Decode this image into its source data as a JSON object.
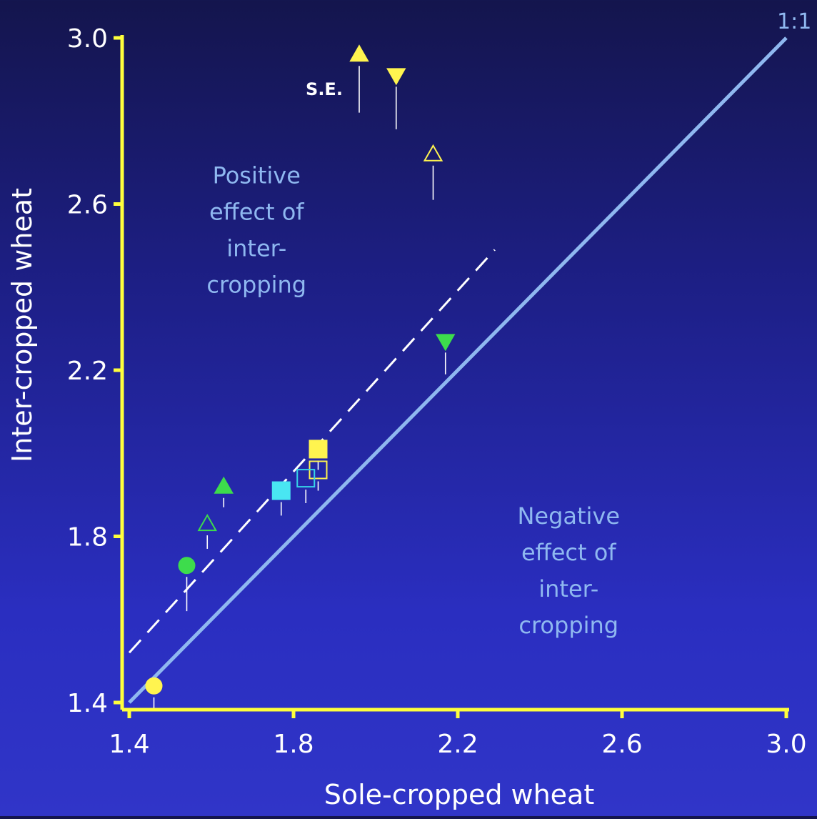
{
  "chart_data": {
    "type": "scatter",
    "xlabel": "Sole-cropped wheat",
    "ylabel": "Inter-cropped wheat",
    "xlim": [
      1.4,
      3.0
    ],
    "ylim": [
      1.4,
      3.0
    ],
    "xticks": [
      "1.4",
      "1.8",
      "2.2",
      "2.6",
      "3.0"
    ],
    "yticks": [
      "1.4",
      "1.8",
      "2.2",
      "2.6",
      "3.0"
    ],
    "reference_line": {
      "label": "1:1",
      "from": [
        1.4,
        1.4
      ],
      "to": [
        3.0,
        3.0
      ],
      "color": "#8fb8f0"
    },
    "fitted_line": {
      "style": "dashed",
      "from": [
        1.4,
        1.52
      ],
      "to": [
        2.29,
        2.49
      ],
      "color": "#ffffff"
    },
    "se_label": "S.E.",
    "annotations": [
      {
        "lines": [
          "Positive",
          "effect of",
          "inter-",
          "cropping"
        ],
        "at": [
          1.71,
          2.65
        ]
      },
      {
        "lines": [
          "Negative",
          "effect of",
          "inter-",
          "cropping"
        ],
        "at": [
          2.47,
          1.83
        ]
      }
    ],
    "points": [
      {
        "x": 1.96,
        "y": 2.96,
        "marker": "triangle-up",
        "fill": "#fff44f",
        "stroke": "#fff44f",
        "se": 0.14
      },
      {
        "x": 2.05,
        "y": 2.91,
        "marker": "triangle-down",
        "fill": "#fff44f",
        "stroke": "#fff44f",
        "se": 0.13
      },
      {
        "x": 2.14,
        "y": 2.72,
        "marker": "triangle-up",
        "fill": "none",
        "stroke": "#fff44f",
        "se": 0.11
      },
      {
        "x": 2.17,
        "y": 2.27,
        "marker": "triangle-down",
        "fill": "#3ddc4c",
        "stroke": "#3ddc4c",
        "se": 0.08
      },
      {
        "x": 1.86,
        "y": 2.01,
        "marker": "square",
        "fill": "#fff44f",
        "stroke": "#fff44f",
        "se": 0.05
      },
      {
        "x": 1.86,
        "y": 1.96,
        "marker": "square",
        "fill": "none",
        "stroke": "#fff44f",
        "se": 0.05
      },
      {
        "x": 1.83,
        "y": 1.94,
        "marker": "square",
        "fill": "none",
        "stroke": "#37d4e8",
        "se": 0.06
      },
      {
        "x": 1.77,
        "y": 1.91,
        "marker": "square",
        "fill": "#49e6f2",
        "stroke": "#49e6f2",
        "se": 0.06
      },
      {
        "x": 1.63,
        "y": 1.92,
        "marker": "triangle-up",
        "fill": "#3ddc4c",
        "stroke": "#3ddc4c",
        "se": 0.05
      },
      {
        "x": 1.59,
        "y": 1.83,
        "marker": "triangle-up",
        "fill": "none",
        "stroke": "#3ddc4c",
        "se": 0.06
      },
      {
        "x": 1.54,
        "y": 1.73,
        "marker": "circle",
        "fill": "#3ddc4c",
        "stroke": "#3ddc4c",
        "se": 0.11
      },
      {
        "x": 1.46,
        "y": 1.44,
        "marker": "circle",
        "fill": "#fff44f",
        "stroke": "#fff44f",
        "se": 0.06
      }
    ],
    "colors": {
      "axis": "#ffff3c",
      "tick_text": "#ffffff",
      "annotation_text": "#8fb8f0",
      "grid": false
    }
  }
}
